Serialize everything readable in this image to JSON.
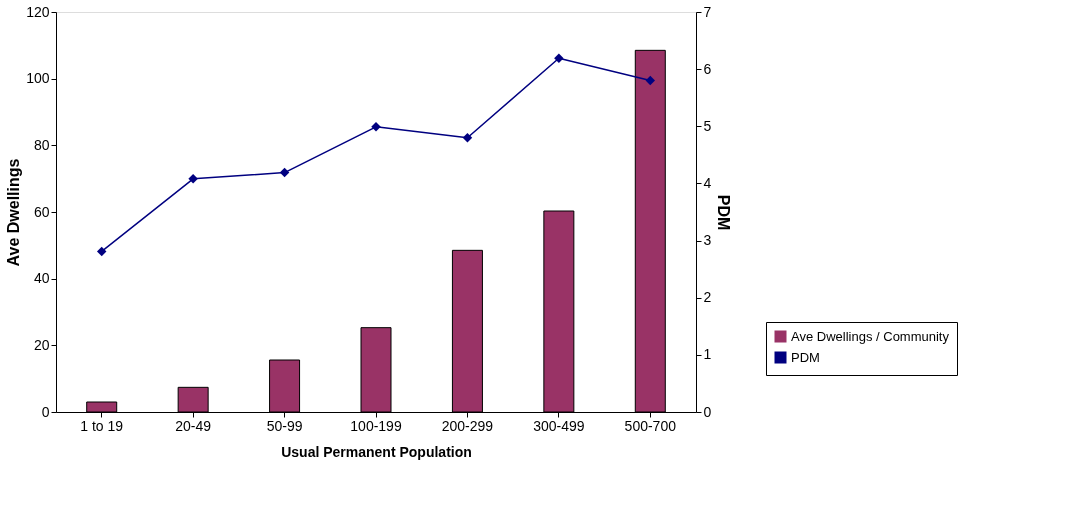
{
  "chart_data": {
    "type": "bar",
    "xlabel": "Usual Permanent Population",
    "ylabel": "Ave Dwellings",
    "y2label": "PDM",
    "categories": [
      "1 to 19",
      "20-49",
      "50-99",
      "100-199",
      "200-299",
      "300-499",
      "500-700"
    ],
    "series": [
      {
        "name": "Ave Dwellings / Community",
        "color": "#993366",
        "values": [
          3,
          7.4,
          15.6,
          25.3,
          48.5,
          60.3,
          108.5
        ]
      },
      {
        "name": "PDM",
        "type": "line",
        "axis": "y2",
        "color": "#000080",
        "marker": "diamond",
        "line_style": "solid",
        "values": [
          2.81,
          4.08,
          4.19,
          4.99,
          4.8,
          6.19,
          5.8
        ]
      }
    ],
    "ylim": [
      0,
      120
    ],
    "yticks": [
      0,
      20,
      40,
      60,
      80,
      100,
      120
    ],
    "y2lim": [
      0,
      7
    ],
    "y2ticks": [
      0,
      1,
      2,
      3,
      4,
      5,
      6,
      7
    ],
    "grid": false,
    "legend": "bottom right"
  }
}
